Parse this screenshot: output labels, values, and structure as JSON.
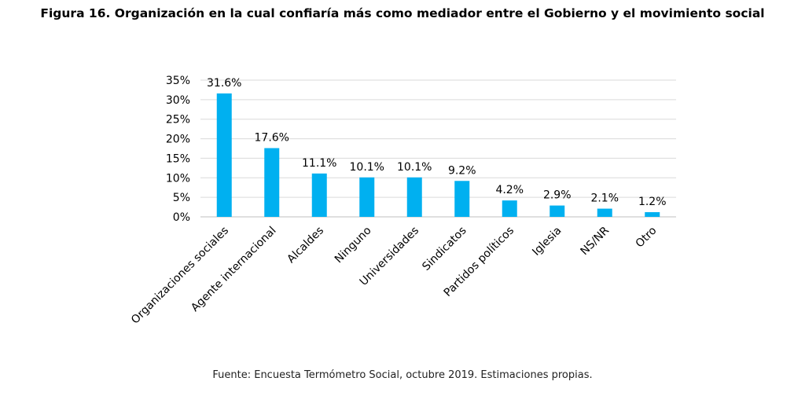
{
  "figure": {
    "title": "Figura 16. Organización en la cual confiaría más como mediador entre el Gobierno y el movimiento social",
    "source": "Fuente: Encuesta Termómetro Social, octubre 2019. Estimaciones propias."
  },
  "chart_data": {
    "type": "bar",
    "categories": [
      "Organizaciones sociales",
      "Agente internacional",
      "Alcaldes",
      "Ninguno",
      "Universidades",
      "Sindicatos",
      "Partidos políticos",
      "Iglesia",
      "NS/NR",
      "Otro"
    ],
    "values": [
      31.6,
      17.6,
      11.1,
      10.1,
      10.1,
      9.2,
      4.2,
      2.9,
      2.1,
      1.2
    ],
    "data_labels": [
      "31.6%",
      "17.6%",
      "11.1%",
      "10.1%",
      "10.1%",
      "9.2%",
      "4.2%",
      "2.9%",
      "2.1%",
      "1.2%"
    ],
    "yticks": [
      "0%",
      "5%",
      "10%",
      "15%",
      "20%",
      "25%",
      "30%",
      "35%"
    ],
    "ylim": [
      0,
      35
    ],
    "grid": true,
    "bar_color": "#00B0F0",
    "grid_color": "#D9D9D9"
  }
}
